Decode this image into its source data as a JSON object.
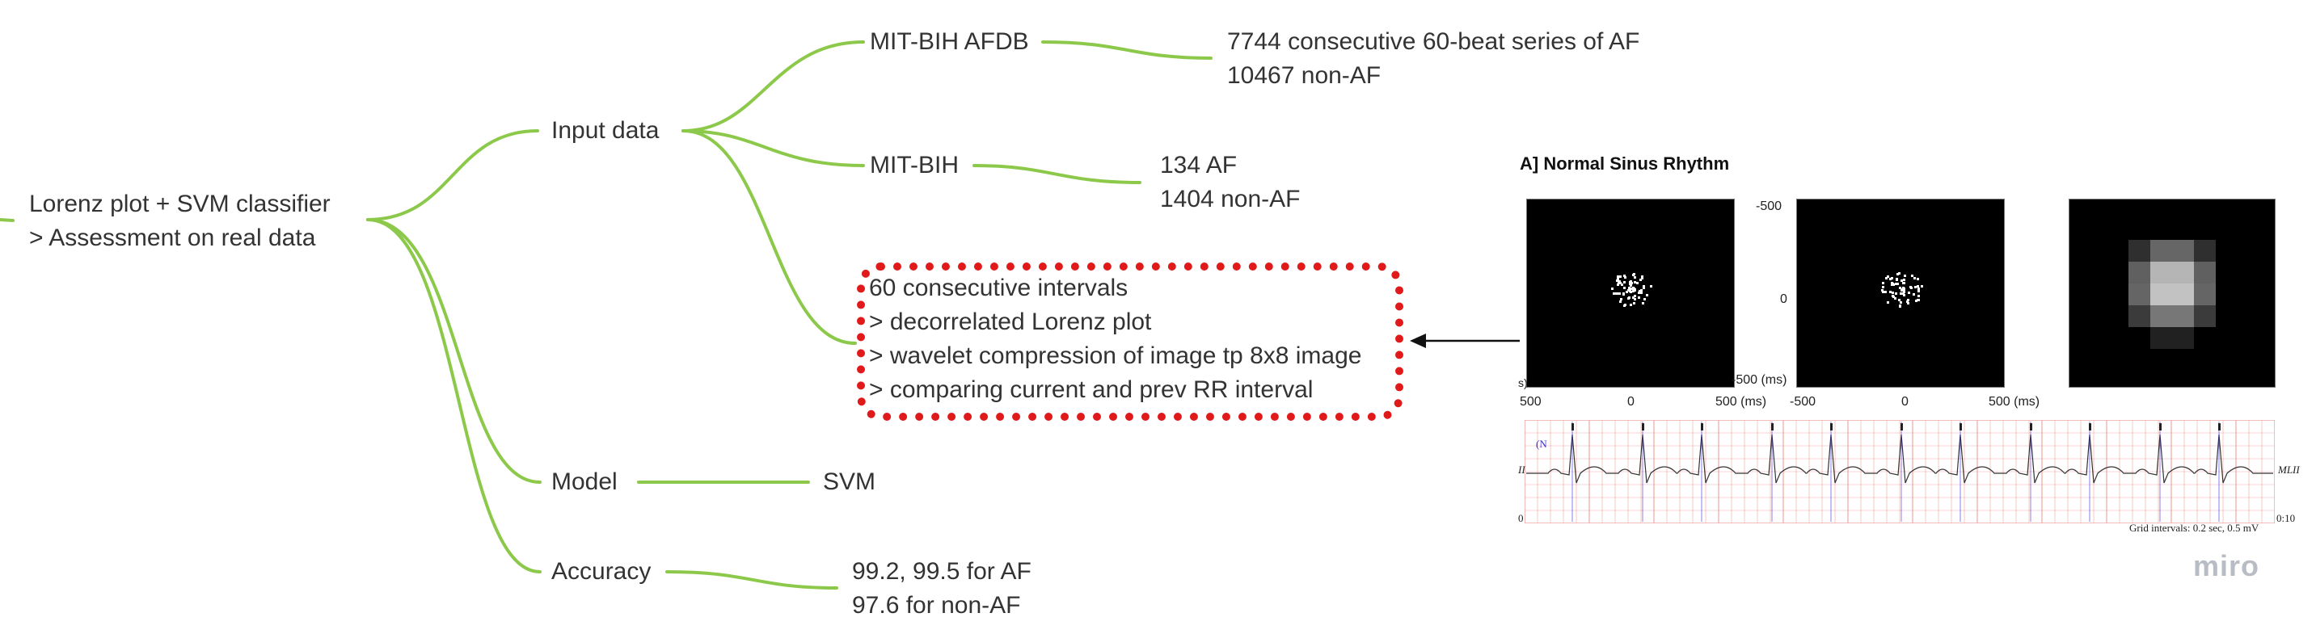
{
  "colors": {
    "branch": "#8cc94a",
    "callout_border": "#e01a1a",
    "text": "#333333",
    "ecg_grid": "#f1a7a7",
    "ecg_trace": "#333333",
    "ecg_marker": "#3a2ad6"
  },
  "mindmap": {
    "root": {
      "line1": "Lorenz plot + SVM classifier",
      "line2": "> Assessment on real data"
    },
    "input_data": "Input data",
    "afdb": "MIT-BIH AFDB",
    "afdb_detail": {
      "line1": "7744 consecutive 60-beat series of AF",
      "line2": "10467 non-AF"
    },
    "mitbih": "MIT-BIH",
    "mitbih_detail": {
      "line1": "134 AF",
      "line2": "1404 non-AF"
    },
    "method": {
      "line1": "60 consecutive intervals",
      "line2": "> decorrelated Lorenz plot",
      "line3": "> wavelet compression of image tp 8x8 image",
      "line4": "> comparing current and prev RR interval"
    },
    "model": "Model",
    "model_value": "SVM",
    "accuracy": "Accuracy",
    "accuracy_detail": {
      "line1": "99.2, 99.5 for AF",
      "line2": "97.6 for non-AF"
    }
  },
  "figure": {
    "title": "A] Normal Sinus Rhythm",
    "ticks": {
      "y_top": "-500",
      "y_mid": "0",
      "y_bottom": "-500 (ms)",
      "a_left": "500",
      "a_mid": "0",
      "a_right": "500 (ms)",
      "b_left": "-500",
      "b_mid": "0",
      "b_right": "500 (ms)",
      "small_mark": "s)"
    },
    "ecg": {
      "lead_top": "(N",
      "lead_left": "II",
      "lead_right": "MLII",
      "zero": "0",
      "end_time": "0:10",
      "grid_caption": "Grid intervals: 0.2 sec, 0.5 mV"
    }
  },
  "brand": "miro"
}
